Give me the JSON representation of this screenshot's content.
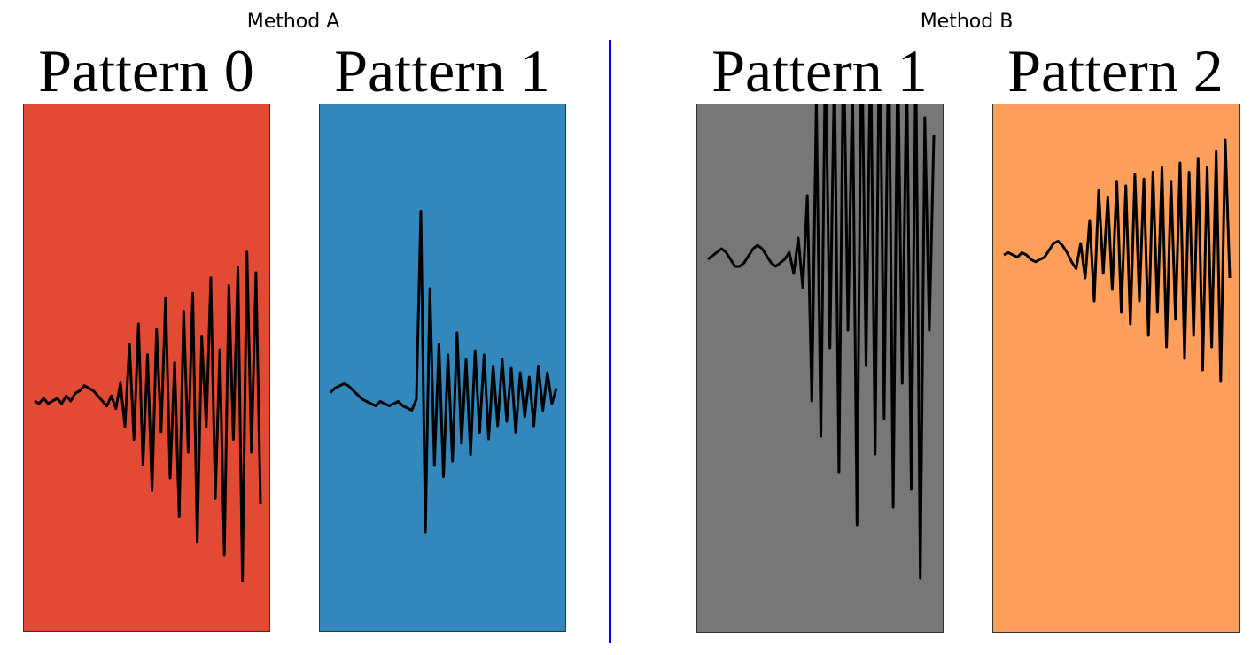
{
  "groups": [
    {
      "title": "Method A"
    },
    {
      "title": "Method B"
    }
  ],
  "colors": {
    "divider": "#0000ff",
    "line": "#000000"
  },
  "chart_data": [
    {
      "type": "line",
      "title": "Pattern 0",
      "group": "Method A",
      "background": "#e34a33",
      "description_free": true,
      "x": [
        0.0,
        0.02,
        0.04,
        0.06,
        0.08,
        0.1,
        0.12,
        0.14,
        0.16,
        0.18,
        0.2,
        0.22,
        0.24,
        0.26,
        0.28,
        0.3,
        0.32,
        0.34,
        0.36,
        0.38,
        0.4,
        0.42,
        0.44,
        0.46,
        0.48,
        0.5,
        0.52,
        0.54,
        0.56,
        0.58,
        0.6,
        0.62,
        0.64,
        0.66,
        0.68,
        0.7,
        0.72,
        0.74,
        0.76,
        0.78,
        0.8,
        0.82,
        0.84,
        0.86,
        0.88,
        0.9,
        0.92,
        0.94,
        0.96,
        0.98,
        1.0
      ],
      "y": [
        0.0,
        -0.01,
        0.01,
        -0.01,
        0.0,
        0.01,
        -0.01,
        0.02,
        0.0,
        0.03,
        0.04,
        0.06,
        0.05,
        0.04,
        0.02,
        0.0,
        -0.02,
        0.02,
        -0.03,
        0.07,
        -0.1,
        0.22,
        -0.15,
        0.3,
        -0.25,
        0.18,
        -0.35,
        0.28,
        -0.12,
        0.4,
        -0.3,
        0.15,
        -0.45,
        0.35,
        -0.2,
        0.42,
        -0.55,
        0.25,
        -0.1,
        0.48,
        -0.38,
        0.2,
        -0.6,
        0.45,
        -0.15,
        0.52,
        -0.7,
        0.58,
        -0.2,
        0.5,
        -0.4
      ],
      "ylim": [
        -1,
        1
      ]
    },
    {
      "type": "line",
      "title": "Pattern 1",
      "group": "Method A",
      "background": "#3288bd",
      "x": [
        0.0,
        0.02,
        0.04,
        0.06,
        0.08,
        0.1,
        0.12,
        0.14,
        0.16,
        0.18,
        0.2,
        0.22,
        0.24,
        0.26,
        0.28,
        0.3,
        0.32,
        0.34,
        0.36,
        0.38,
        0.4,
        0.42,
        0.44,
        0.46,
        0.48,
        0.5,
        0.52,
        0.54,
        0.56,
        0.58,
        0.6,
        0.62,
        0.64,
        0.66,
        0.68,
        0.7,
        0.72,
        0.74,
        0.76,
        0.78,
        0.8,
        0.82,
        0.84,
        0.86,
        0.88,
        0.9,
        0.92,
        0.94,
        0.96,
        0.98,
        1.0
      ],
      "y": [
        0.03,
        0.05,
        0.06,
        0.07,
        0.06,
        0.04,
        0.02,
        0.0,
        -0.01,
        -0.02,
        -0.03,
        -0.01,
        -0.02,
        -0.03,
        -0.02,
        -0.01,
        -0.03,
        -0.04,
        -0.05,
        0.0,
        0.85,
        -0.6,
        0.5,
        -0.3,
        0.25,
        -0.35,
        0.2,
        -0.28,
        0.3,
        -0.2,
        0.18,
        -0.25,
        0.22,
        -0.15,
        0.2,
        -0.18,
        0.15,
        -0.12,
        0.18,
        -0.1,
        0.14,
        -0.15,
        0.12,
        -0.08,
        0.1,
        -0.12,
        0.15,
        -0.05,
        0.12,
        -0.02,
        0.05
      ],
      "ylim": [
        -1,
        1
      ]
    },
    {
      "type": "line",
      "title": "Pattern 1",
      "group": "Method B",
      "background": "#777777",
      "x": [
        0.0,
        0.02,
        0.04,
        0.06,
        0.08,
        0.1,
        0.12,
        0.14,
        0.16,
        0.18,
        0.2,
        0.22,
        0.24,
        0.26,
        0.28,
        0.3,
        0.32,
        0.34,
        0.36,
        0.38,
        0.4,
        0.42,
        0.44,
        0.46,
        0.48,
        0.5,
        0.52,
        0.54,
        0.56,
        0.58,
        0.6,
        0.62,
        0.64,
        0.66,
        0.68,
        0.7,
        0.72,
        0.74,
        0.76,
        0.78,
        0.8,
        0.82,
        0.84,
        0.86,
        0.88,
        0.9,
        0.92,
        0.94,
        0.96,
        0.98,
        1.0
      ],
      "y": [
        0.0,
        0.01,
        0.02,
        0.03,
        0.02,
        0.0,
        -0.02,
        -0.02,
        -0.01,
        0.01,
        0.03,
        0.04,
        0.03,
        0.01,
        -0.01,
        -0.02,
        -0.01,
        0.0,
        0.02,
        -0.04,
        0.06,
        -0.08,
        0.18,
        -0.4,
        0.45,
        -0.5,
        0.6,
        -0.25,
        0.55,
        -0.6,
        0.65,
        -0.2,
        0.5,
        -0.75,
        0.7,
        -0.3,
        0.62,
        -0.55,
        0.72,
        -0.45,
        0.68,
        -0.7,
        0.6,
        -0.35,
        0.55,
        -0.65,
        0.58,
        -0.9,
        0.4,
        -0.2,
        0.35
      ],
      "ylim": [
        -1,
        1
      ]
    },
    {
      "type": "line",
      "title": "Pattern 2",
      "group": "Method B",
      "background": "#fd9f5a",
      "x": [
        0.0,
        0.02,
        0.04,
        0.06,
        0.08,
        0.1,
        0.12,
        0.14,
        0.16,
        0.18,
        0.2,
        0.22,
        0.24,
        0.26,
        0.28,
        0.3,
        0.32,
        0.34,
        0.36,
        0.38,
        0.4,
        0.42,
        0.44,
        0.46,
        0.48,
        0.5,
        0.52,
        0.54,
        0.56,
        0.58,
        0.6,
        0.62,
        0.64,
        0.66,
        0.68,
        0.7,
        0.72,
        0.74,
        0.76,
        0.78,
        0.8,
        0.82,
        0.84,
        0.86,
        0.88,
        0.9,
        0.92,
        0.94,
        0.96,
        0.98,
        1.0
      ],
      "y": [
        0.0,
        0.01,
        0.0,
        -0.01,
        0.01,
        0.0,
        -0.02,
        -0.03,
        -0.02,
        -0.01,
        0.02,
        0.05,
        0.06,
        0.04,
        0.01,
        -0.03,
        -0.06,
        0.05,
        -0.1,
        0.15,
        -0.2,
        0.28,
        -0.08,
        0.25,
        -0.15,
        0.32,
        -0.25,
        0.3,
        -0.3,
        0.35,
        -0.2,
        0.33,
        -0.35,
        0.36,
        -0.25,
        0.38,
        -0.4,
        0.32,
        -0.28,
        0.4,
        -0.45,
        0.36,
        -0.35,
        0.42,
        -0.5,
        0.38,
        -0.4,
        0.45,
        -0.55,
        0.5,
        -0.1
      ],
      "ylim": [
        -1,
        1
      ]
    }
  ]
}
